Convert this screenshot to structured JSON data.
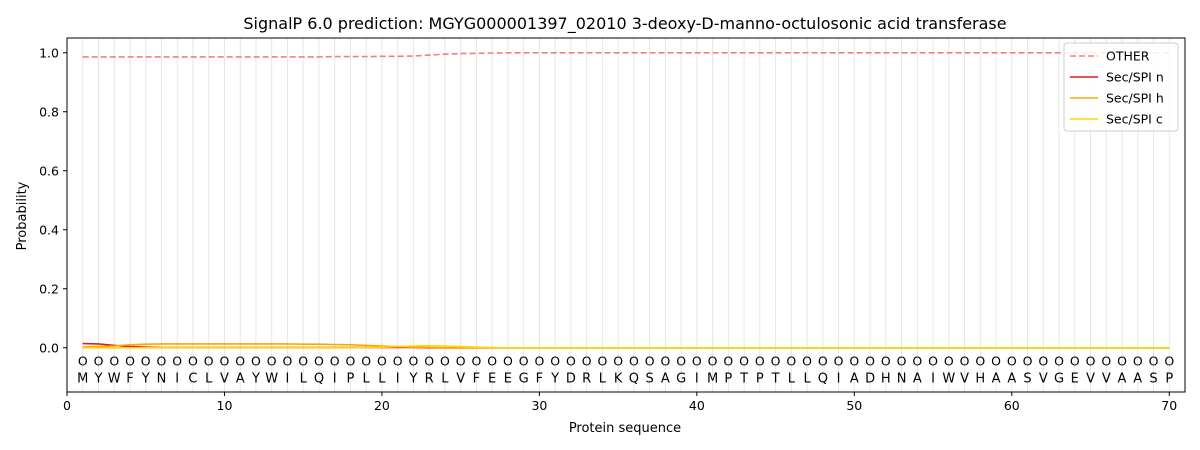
{
  "chart_data": {
    "type": "line",
    "title": "SignalP 6.0 prediction: MGYG000001397_02010 3-deoxy-D-manno-octulosonic acid transferase",
    "xlabel": "Protein sequence",
    "ylabel": "Probability",
    "xlim": [
      0,
      71
    ],
    "ylim": [
      -0.15,
      1.05
    ],
    "xticks": [
      0,
      10,
      20,
      30,
      40,
      50,
      60,
      70
    ],
    "yticks": [
      0.0,
      0.2,
      0.4,
      0.6,
      0.8,
      1.0
    ],
    "ytick_labels": [
      "0.0",
      "0.2",
      "0.4",
      "0.6",
      "0.8",
      "1.0"
    ],
    "legend_position": "top-right",
    "sequence": "MYWFYNICLVAYWILQIPLLIYRLVFEEGFYDRLKQSAGIMPTPTLLQIADHNAIWVHAASVGEVVAASP",
    "state_label": "O",
    "grid": "vertical lines at each residue",
    "series": [
      {
        "name": "OTHER",
        "color": "#f08080",
        "style": "dashed",
        "values": [
          0.986,
          0.986,
          0.986,
          0.986,
          0.986,
          0.986,
          0.986,
          0.986,
          0.986,
          0.986,
          0.986,
          0.986,
          0.986,
          0.986,
          0.986,
          0.986,
          0.987,
          0.987,
          0.987,
          0.988,
          0.988,
          0.989,
          0.992,
          0.995,
          0.997,
          0.998,
          0.999,
          1,
          1,
          1,
          1,
          1,
          1,
          1,
          1,
          1,
          1,
          1,
          1,
          1,
          1,
          1,
          1,
          1,
          1,
          1,
          1,
          1,
          1,
          1,
          1,
          1,
          1,
          1,
          1,
          1,
          1,
          1,
          1,
          1,
          1,
          1,
          1,
          1,
          1,
          1,
          1,
          1,
          1,
          1
        ]
      },
      {
        "name": "Sec/SPI n",
        "color": "#e41a1c",
        "style": "solid",
        "values": [
          0.014,
          0.013,
          0.008,
          0.004,
          0.002,
          0.001,
          0.001,
          0.001,
          0.001,
          0.001,
          0.001,
          0.001,
          0.001,
          0.001,
          0.001,
          0.001,
          0.001,
          0.001,
          0.001,
          0.001,
          0.001,
          0.001,
          0,
          0,
          0,
          0,
          0,
          0,
          0,
          0,
          0,
          0,
          0,
          0,
          0,
          0,
          0,
          0,
          0,
          0,
          0,
          0,
          0,
          0,
          0,
          0,
          0,
          0,
          0,
          0,
          0,
          0,
          0,
          0,
          0,
          0,
          0,
          0,
          0,
          0,
          0,
          0,
          0,
          0,
          0,
          0,
          0,
          0,
          0,
          0
        ]
      },
      {
        "name": "Sec/SPI h",
        "color": "#ffa500",
        "style": "solid",
        "values": [
          0.003,
          0.004,
          0.006,
          0.01,
          0.012,
          0.013,
          0.013,
          0.013,
          0.013,
          0.013,
          0.013,
          0.013,
          0.013,
          0.013,
          0.012,
          0.012,
          0.011,
          0.01,
          0.008,
          0.006,
          0.004,
          0.002,
          0.001,
          0,
          0,
          0,
          0,
          0,
          0,
          0,
          0,
          0,
          0,
          0,
          0,
          0,
          0,
          0,
          0,
          0,
          0,
          0,
          0,
          0,
          0,
          0,
          0,
          0,
          0,
          0,
          0,
          0,
          0,
          0,
          0,
          0,
          0,
          0,
          0,
          0,
          0,
          0,
          0,
          0,
          0,
          0,
          0,
          0,
          0,
          0
        ]
      },
      {
        "name": "Sec/SPI c",
        "color": "#ffd700",
        "style": "solid",
        "values": [
          0,
          0,
          0,
          0,
          0,
          0,
          0,
          0,
          0,
          0,
          0,
          0,
          0,
          0,
          0,
          0,
          0,
          0,
          0.001,
          0.002,
          0.004,
          0.006,
          0.007,
          0.006,
          0.004,
          0.002,
          0.001,
          0,
          0,
          0,
          0,
          0,
          0,
          0,
          0,
          0,
          0,
          0,
          0,
          0,
          0,
          0,
          0,
          0,
          0,
          0,
          0,
          0,
          0,
          0,
          0,
          0,
          0,
          0,
          0,
          0,
          0,
          0,
          0,
          0,
          0,
          0,
          0,
          0,
          0,
          0,
          0,
          0,
          0,
          0
        ]
      }
    ]
  }
}
